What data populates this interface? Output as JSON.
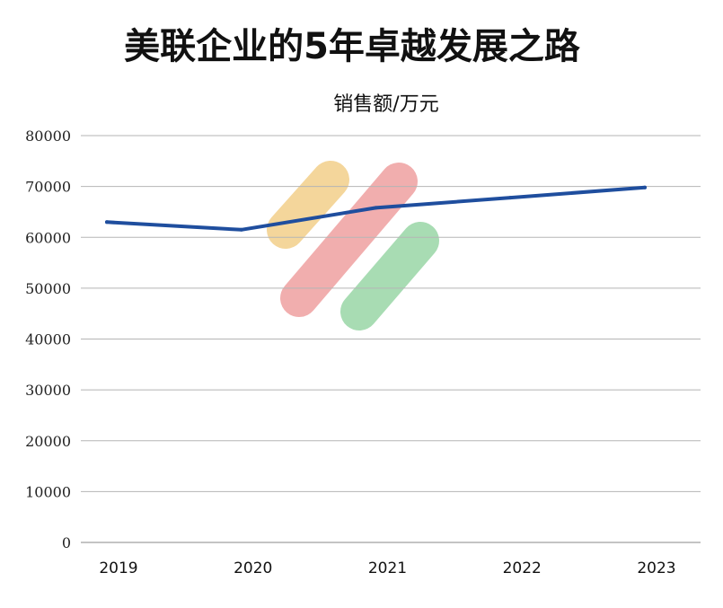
{
  "chart_data": {
    "type": "line",
    "title": "美联企业的5年卓越发展之路",
    "unit_label": "销售额/万元",
    "categories": [
      "2019",
      "2020",
      "2021",
      "2022",
      "2023"
    ],
    "series": [
      {
        "values": [
          63000,
          61500,
          65800,
          67800,
          69800
        ]
      }
    ],
    "ylim": [
      0,
      80000
    ],
    "yticks": [
      0,
      10000,
      20000,
      30000,
      40000,
      50000,
      60000,
      70000,
      80000
    ],
    "grid": true,
    "colors": {
      "series": "#1f4e9e",
      "deco_yellow": "#f2cf8a",
      "deco_red": "#ee9a9a",
      "deco_green": "#92d3a0"
    }
  }
}
